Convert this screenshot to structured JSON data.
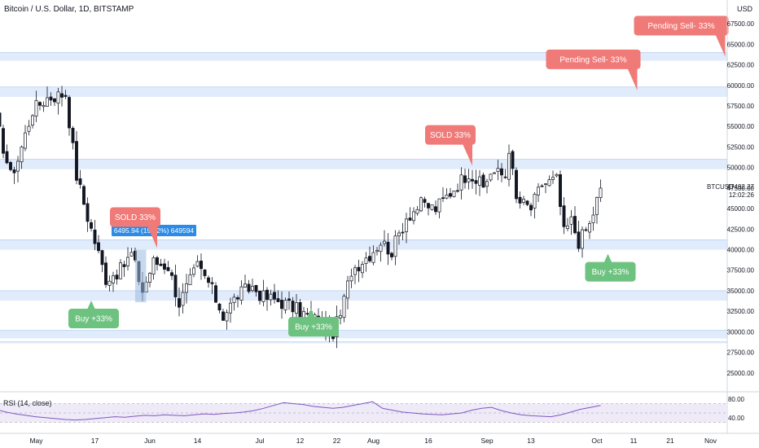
{
  "header": {
    "symbol_title": "Bitcoin / U.S. Dollar, 1D, BITSTAMP",
    "currency": "USD"
  },
  "price_label": {
    "symbol": "BTCUSD",
    "price": "47492.27",
    "countdown": "12:02:26"
  },
  "measure_label": "6495.94 (19.12%) 649594",
  "annotations": [
    {
      "text": "Pending Sell- 33%",
      "type": "sell",
      "date_idx": 199,
      "price": 63500
    },
    {
      "text": "Pending Sell- 33%",
      "type": "sell",
      "date_idx": 175,
      "price": 59400
    },
    {
      "text": "SOLD 33%",
      "type": "sell",
      "date_idx": 130,
      "price": 50200
    },
    {
      "text": "SOLD 33%",
      "type": "sell",
      "date_idx": 44,
      "price": 40200
    },
    {
      "text": "Buy +33%",
      "type": "buy",
      "date_idx": 26,
      "price": 33800
    },
    {
      "text": "Buy +33%",
      "type": "buy",
      "date_idx": 86,
      "price": 32800
    },
    {
      "text": "Buy +33%",
      "type": "buy",
      "date_idx": 167,
      "price": 39500
    }
  ],
  "rsi": {
    "title": "RSI (14, close)",
    "ticks": [
      "80.00",
      "40.00"
    ]
  },
  "colors": {
    "up": "#26a69a",
    "down": "#131722",
    "sell_bubble": "#f07a78",
    "buy_bubble": "#6dc27f",
    "zone": "#dbe8fb",
    "rsi_line": "#7e57c2",
    "rsi_band": "#efeaf8",
    "measure_bg": "#2b8be6"
  },
  "chart_data": {
    "type": "candlestick",
    "title": "Bitcoin / U.S. Dollar, 1D, BITSTAMP",
    "ylabel": "USD",
    "ylim": [
      23000,
      69000
    ],
    "y_ticks": [
      25000,
      27500,
      30000,
      32500,
      35000,
      37500,
      40000,
      42500,
      45000,
      47500,
      50000,
      52500,
      55000,
      57500,
      60000,
      62500,
      65000,
      67500
    ],
    "x_ticks": [
      {
        "label": "May",
        "idx": 11
      },
      {
        "label": "17",
        "idx": 27
      },
      {
        "label": "Jun",
        "idx": 42
      },
      {
        "label": "14",
        "idx": 55
      },
      {
        "label": "Jul",
        "idx": 72
      },
      {
        "label": "12",
        "idx": 83
      },
      {
        "label": "22",
        "idx": 93
      },
      {
        "label": "Aug",
        "idx": 103
      },
      {
        "label": "16",
        "idx": 118
      },
      {
        "label": "Sep",
        "idx": 134
      },
      {
        "label": "13",
        "idx": 146
      },
      {
        "label": "Oct",
        "idx": 164
      },
      {
        "label": "11",
        "idx": 174
      },
      {
        "label": "21",
        "idx": 184
      },
      {
        "label": "Nov",
        "idx": 195
      }
    ],
    "support_resistance_zones": [
      [
        63000,
        64000
      ],
      [
        58600,
        59800
      ],
      [
        49800,
        51000
      ],
      [
        40000,
        41200
      ],
      [
        33800,
        35000
      ],
      [
        29200,
        30200
      ],
      [
        28600,
        28800
      ]
    ],
    "trend_closes": [
      [
        0,
        56000
      ],
      [
        4,
        49000
      ],
      [
        6,
        51000
      ],
      [
        10,
        57000
      ],
      [
        14,
        58500
      ],
      [
        19,
        59000
      ],
      [
        22,
        49000
      ],
      [
        25,
        44000
      ],
      [
        30,
        36500
      ],
      [
        34,
        37500
      ],
      [
        37,
        39500
      ],
      [
        40,
        35000
      ],
      [
        43,
        38500
      ],
      [
        47,
        38000
      ],
      [
        50,
        33500
      ],
      [
        55,
        38000
      ],
      [
        58,
        36000
      ],
      [
        62,
        32000
      ],
      [
        66,
        34500
      ],
      [
        70,
        35500
      ],
      [
        73,
        34200
      ],
      [
        77,
        33800
      ],
      [
        80,
        33200
      ],
      [
        84,
        32200
      ],
      [
        87,
        31500
      ],
      [
        92,
        30000
      ],
      [
        94,
        32000
      ],
      [
        97,
        37500
      ],
      [
        102,
        39500
      ],
      [
        105,
        41000
      ],
      [
        108,
        39800
      ],
      [
        112,
        44000
      ],
      [
        116,
        45500
      ],
      [
        120,
        45000
      ],
      [
        124,
        47000
      ],
      [
        127,
        48500
      ],
      [
        129,
        49500
      ],
      [
        133,
        47500
      ],
      [
        135,
        49500
      ],
      [
        139,
        49000
      ],
      [
        140,
        52500
      ],
      [
        142,
        46000
      ],
      [
        146,
        45000
      ],
      [
        149,
        48000
      ],
      [
        153,
        48500
      ],
      [
        155,
        42000
      ],
      [
        157,
        43500
      ],
      [
        159,
        41000
      ],
      [
        162,
        43000
      ],
      [
        165,
        47492
      ]
    ],
    "current_price": 47492.27,
    "rsi_levels": [
      70,
      50,
      30
    ],
    "rsi_values": [
      58,
      52,
      48,
      45,
      42,
      40,
      38,
      36,
      35,
      36,
      38,
      40,
      42,
      41,
      43,
      45,
      44,
      46,
      45,
      44,
      46,
      48,
      47,
      49,
      50,
      52,
      55,
      60,
      66,
      72,
      70,
      68,
      64,
      62,
      60,
      62,
      66,
      70,
      74,
      60,
      56,
      52,
      50,
      48,
      47,
      46,
      48,
      50,
      56,
      60,
      62,
      55,
      50,
      46,
      44,
      43,
      42,
      46,
      52,
      58,
      62,
      66
    ]
  }
}
